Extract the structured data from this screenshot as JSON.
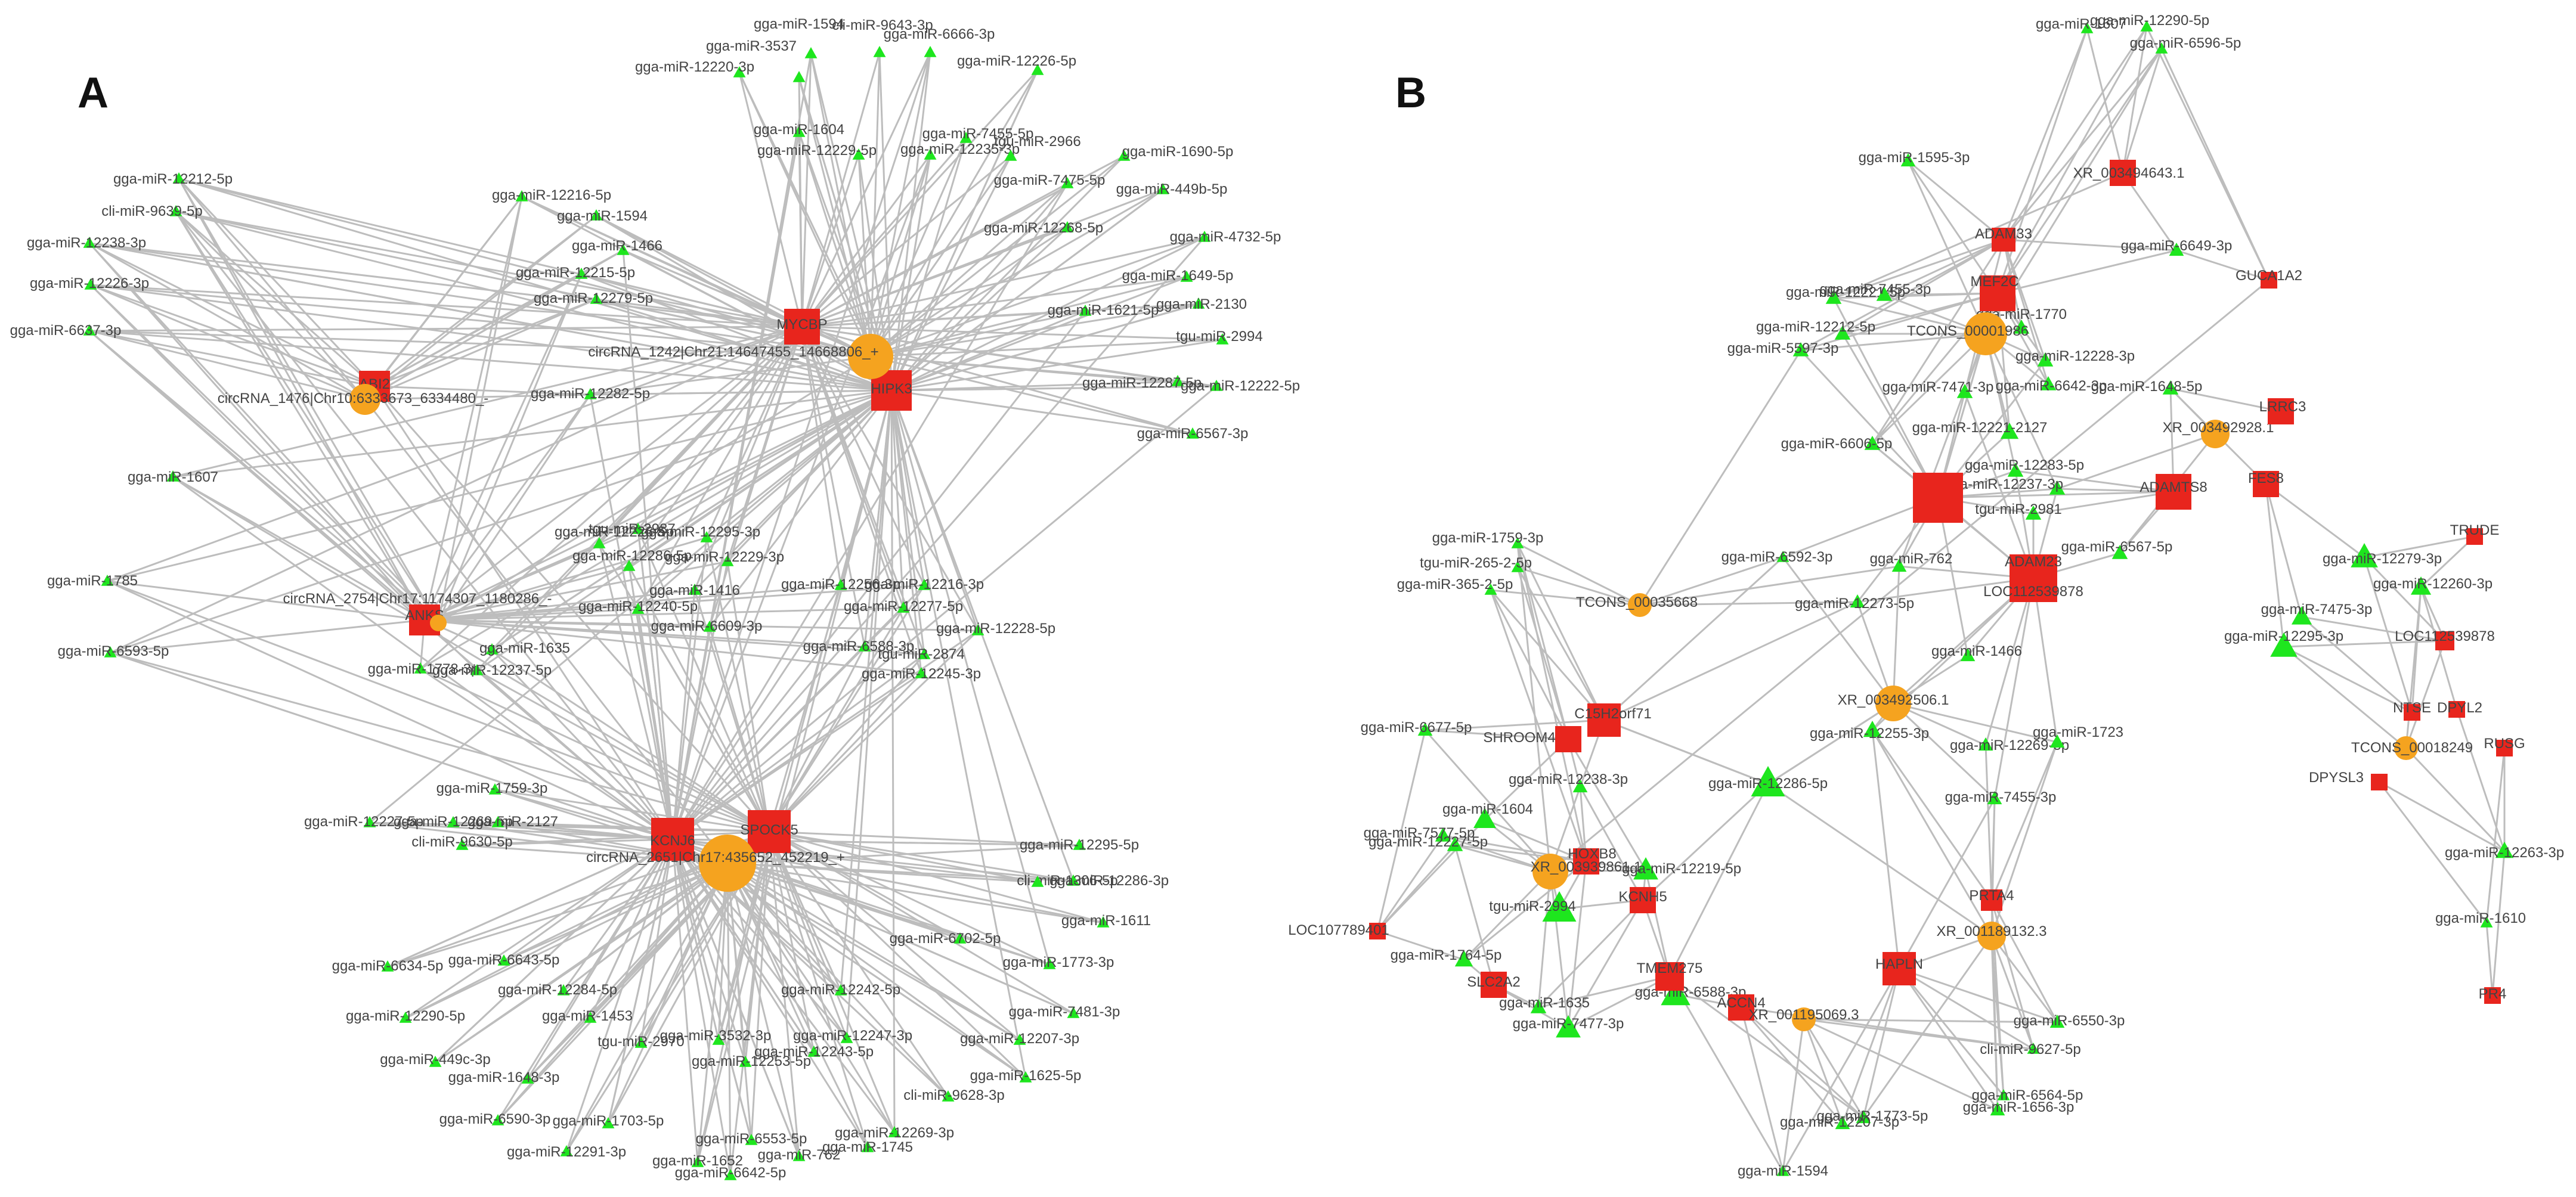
{
  "figure": {
    "panel_a_label": "A",
    "panel_b_label": "B",
    "colors": {
      "mirna": "#1ee61e",
      "gene": "#e8251d",
      "circrna_lncrna": "#f5a31f",
      "edge": "#bdbdbd"
    }
  },
  "panelA": {
    "hubs": [
      {
        "id": "A_MYCBP",
        "label": "MYCBP",
        "type": "gene"
      },
      {
        "id": "A_HIPK3",
        "label": "HIPK3",
        "type": "gene"
      },
      {
        "id": "A_ABI2",
        "label": "ABI2",
        "type": "gene"
      },
      {
        "id": "A_ANKS",
        "label": "ANKS",
        "type": "gene"
      },
      {
        "id": "A_KCNJ6",
        "label": "KCNJ6",
        "type": "gene"
      },
      {
        "id": "A_SPOCK5",
        "label": "SPOCK5",
        "type": "gene"
      },
      {
        "id": "A_circ1",
        "label": "circRNA_1242|Chr21:14647455_14668806_+",
        "type": "circ"
      },
      {
        "id": "A_circ2",
        "label": "circRNA_1476|Chr10:6333673_6334480_-",
        "type": "circ"
      },
      {
        "id": "A_circ3",
        "label": "circRNA_2754|Chr17:1174307_1180286_-",
        "type": "circ"
      },
      {
        "id": "A_circ4",
        "label": "circRNA_2651|Chr17:435652_452219_+",
        "type": "circ"
      }
    ],
    "mirnas": [
      "gga-miR-1594",
      "gga-miR-3537",
      "cli-miR-9643-3p",
      "gga-miR-6666-3p",
      "gga-miR-12220-3p",
      "gga-miR-12226-5p",
      "gga-miR-1604",
      "gga-miR-12229-5p",
      "gga-miR-7455-5p",
      "gga-miR-12235-3p",
      "tgu-miR-2966",
      "gga-miR-1690-5p",
      "gga-miR-7475-5p",
      "gga-miR-449b-5p",
      "gga-miR-12268-5p",
      "gga-miR-4732-5p",
      "gga-miR-1649-5p",
      "gga-miR-2130",
      "gga-miR-1621-5p",
      "tgu-miR-2994",
      "gga-miR-12287-5p",
      "gga-miR-12222-5p",
      "gga-miR-6567-3p",
      "gga-miR-12212-5p",
      "cli-miR-9639-5p",
      "gga-miR-12238-3p",
      "gga-miR-12226-3p",
      "gga-miR-6637-3p",
      "gga-miR-12216-5p",
      "gga-miR-1594",
      "gga-miR-1466",
      "gga-miR-12215-5p",
      "gga-miR-12279-5p",
      "gga-miR-12282-5p",
      "gga-miR-1607",
      "gga-miR-1785",
      "gga-miR-6593-5p",
      "gga-miR-1635",
      "gga-miR-1778-3p",
      "gga-miR-12237-5p",
      "gga-miR-1759-3p",
      "gga-miR-12227-5p",
      "gga-miR-12269-5p",
      "gga-miR-2127",
      "cli-miR-9630-5p",
      "tgu-miR-2987",
      "gga-miR-12295-3p",
      "gga-miR-12226-5p",
      "gga-miR-12286-5p",
      "gga-miR-12229-3p",
      "gga-miR-1416",
      "gga-miR-12240-5p",
      "gga-miR-6609-3p",
      "gga-miR-12256-3p",
      "gga-miR-12216-3p",
      "gga-miR-12277-5p",
      "gga-miR-12228-5p",
      "gga-miR-6588-3p",
      "tgu-miR-2874",
      "gga-miR-12245-3p",
      "gga-miR-12295-5p",
      "cli-miR-1306-5p",
      "gga-miR-12286-3p",
      "gga-miR-1611",
      "gga-miR-6702-5p",
      "gga-miR-1773-3p",
      "gga-miR-6634-5p",
      "gga-miR-6643-5p",
      "gga-miR-12284-5p",
      "gga-miR-12242-5p",
      "gga-miR-7481-3p",
      "gga-miR-12290-5p",
      "gga-miR-1453",
      "gga-miR-12247-3p",
      "gga-miR-12207-3p",
      "gga-miR-449c-3p",
      "tgu-miR-2970",
      "gga-miR-3532-3p",
      "gga-miR-12243-5p",
      "gga-miR-1648-3p",
      "gga-miR-12253-5p",
      "gga-miR-1625-5p",
      "cli-miR-9628-3p",
      "gga-miR-6590-3p",
      "gga-miR-1703-5p",
      "gga-miR-12269-3p",
      "gga-miR-12291-3p",
      "gga-miR-6553-5p",
      "gga-miR-1745",
      "gga-miR-1652",
      "gga-miR-762",
      "gga-miR-6642-5p"
    ]
  },
  "panelB": {
    "nodes": [
      "XR_003494643.1",
      "ADAM33",
      "MEF2C",
      "GUCA1A2",
      "TCONS_00001986",
      "XR_003492928.1",
      "LRRC3",
      "FES8",
      "ADAMTS8",
      "ADAM23",
      "TCONS_00035668",
      "XR_003492506.1",
      "C15H2orf71",
      "SHROOM4",
      "TRUDE",
      "LOC112539878",
      "NTSE",
      "DPYL2",
      "RUSG",
      "TCONS_00018249",
      "DPYSL3",
      "HOXB8",
      "XR_003939861.1",
      "KCNH5",
      "LOC107789401",
      "SLC2A2",
      "TMEM275",
      "PRTA4",
      "XR_001189132.3",
      "HAPLN",
      "ACCN4",
      "XR_001195069.3",
      "LOC112539878",
      "PR4"
    ],
    "mirnas": [
      "gga-miR-1607",
      "gga-miR-12290-5p",
      "gga-miR-6596-5p",
      "gga-miR-1595-3p",
      "gga-miR-6649-3p",
      "gga-miR-12221-5p",
      "gga-miR-7455-3p",
      "gga-miR-12212-5p",
      "gga-miR-5597-3p",
      "gga-miR-1770",
      "gga-miR-12228-3p",
      "gga-miR-7471-3p",
      "gga-miR-6642-3p",
      "gga-miR-1648-5p",
      "gga-miR-6606-5p",
      "gga-miR-12221-2127",
      "gga-miR-12283-5p",
      "gga-miR-12237-3p",
      "tgu-miR-2981",
      "gga-miR-6592-3p",
      "gga-miR-762",
      "gga-miR-6567-5p",
      "gga-miR-12279-3p",
      "gga-miR-12260-3p",
      "gga-miR-7475-3p",
      "gga-miR-12295-3p",
      "gga-miR-1759-3p",
      "tgu-miR-265-2-5p",
      "gga-miR-365-2-5p",
      "gga-miR-12273-5p",
      "gga-miR-1466",
      "gga-miR-6677-5p",
      "gga-miR-12255-3p",
      "gga-miR-12269-5p",
      "gga-miR-1723",
      "gga-miR-12238-3p",
      "gga-miR-12286-5p",
      "gga-miR-1604",
      "gga-miR-7455-3p",
      "gga-miR-7577-5p",
      "gga-miR-12227-5p",
      "gga-miR-12219-5p",
      "tgu-miR-2994",
      "gga-miR-1764-5p",
      "gga-miR-12263-3p",
      "gga-miR-1610",
      "gga-miR-1635",
      "gga-miR-7477-3p",
      "gga-miR-6588-3p",
      "gga-miR-6550-3p",
      "cli-miR-9627-5p",
      "gga-miR-6564-5p",
      "gga-miR-1656-3p",
      "gga-miR-1773-5p",
      "gga-miR-12207-3p",
      "gga-miR-1594"
    ]
  }
}
